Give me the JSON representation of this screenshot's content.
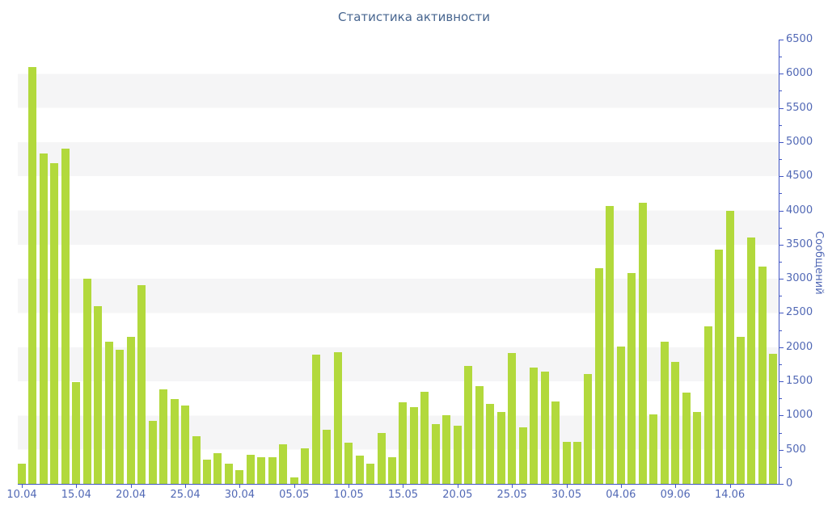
{
  "title": "Статистика активности",
  "y_axis": {
    "title": "Сообщений",
    "min": 0,
    "max": 6500,
    "major_step": 500,
    "minor_step": 250
  },
  "x_axis": {
    "labeled_dates": [
      "10.04",
      "15.04",
      "20.04",
      "25.04",
      "30.04",
      "05.05",
      "10.05",
      "15.05",
      "20.05",
      "25.05",
      "30.05",
      "04.06",
      "09.06",
      "14.06"
    ]
  },
  "chart_data": {
    "type": "bar",
    "title": "Статистика активности",
    "ylabel": "Сообщений",
    "ylim": [
      0,
      6500
    ],
    "grid": "horizontal-stripes-every-500",
    "legend": "none",
    "categories": [
      "10.04",
      "11.04",
      "12.04",
      "13.04",
      "14.04",
      "15.04",
      "16.04",
      "17.04",
      "18.04",
      "19.04",
      "20.04",
      "21.04",
      "22.04",
      "23.04",
      "24.04",
      "25.04",
      "26.04",
      "27.04",
      "28.04",
      "29.04",
      "30.04",
      "01.05",
      "02.05",
      "03.05",
      "04.05",
      "05.05",
      "06.05",
      "07.05",
      "08.05",
      "09.05",
      "10.05",
      "11.05",
      "12.05",
      "13.05",
      "14.05",
      "15.05",
      "16.05",
      "17.05",
      "18.05",
      "19.05",
      "20.05",
      "21.05",
      "22.05",
      "23.05",
      "24.05",
      "25.05",
      "26.05",
      "27.05",
      "28.05",
      "29.05",
      "30.05",
      "31.05",
      "01.06",
      "02.06",
      "03.06",
      "04.06",
      "05.06",
      "06.06",
      "07.06",
      "08.06",
      "09.06",
      "10.06",
      "11.06",
      "12.06",
      "13.06",
      "14.06",
      "15.06",
      "16.06",
      "17.06",
      "18.06"
    ],
    "values": [
      290,
      6100,
      4830,
      4690,
      4900,
      1490,
      3000,
      2600,
      2080,
      1960,
      2150,
      2910,
      920,
      1380,
      1240,
      1150,
      700,
      350,
      450,
      300,
      200,
      420,
      390,
      390,
      580,
      90,
      520,
      1890,
      790,
      1930,
      600,
      410,
      290,
      740,
      390,
      1190,
      1120,
      1350,
      880,
      1000,
      850,
      1720,
      1430,
      1170,
      1050,
      1920,
      830,
      1700,
      1640,
      1210,
      620,
      610,
      1610,
      3150,
      4070,
      2010,
      3080,
      4110,
      1020,
      2080,
      1790,
      1330,
      1050,
      2310,
      3430,
      4000,
      2150,
      3600,
      3180,
      1900
    ]
  },
  "colors": {
    "bar": "#b2d93c",
    "axis_line": "#4156c5",
    "axis_text": "#5168b5",
    "title_text": "#47658f",
    "stripe": "#f5f5f6",
    "background": "#ffffff"
  }
}
